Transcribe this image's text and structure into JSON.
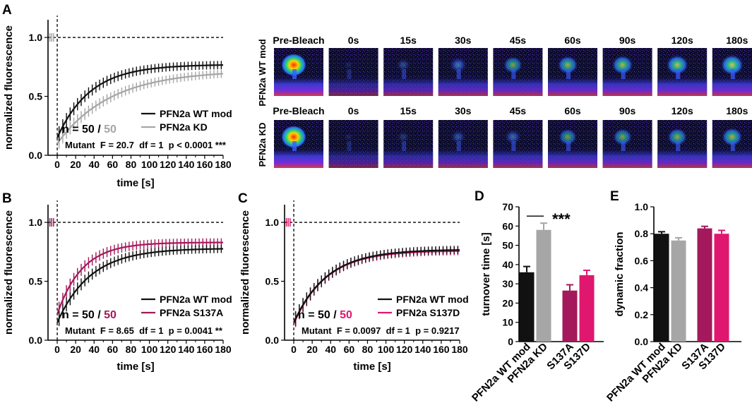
{
  "panel_labels": [
    "A",
    "B",
    "C",
    "D",
    "E"
  ],
  "colors": {
    "wt": "#111111",
    "kd": "#a6a6a6",
    "s137a": "#a3195b",
    "s137d": "#e0176f"
  },
  "chart_data": [
    {
      "id": "A",
      "type": "line",
      "ylabel": "normalized fluorescence",
      "xlabel": "time [s]",
      "xlim": [
        -10,
        180
      ],
      "ylim": [
        0,
        1.15
      ],
      "xticks": [
        "0",
        "20",
        "40",
        "60",
        "80",
        "100",
        "120",
        "140",
        "160",
        "180"
      ],
      "yticks": [
        "0.0",
        "0.5",
        "1.0"
      ],
      "reference_line": 1.0,
      "series": [
        {
          "name": "PFN2a WT mod",
          "color": "#111111",
          "plateau": 0.77,
          "start": 0.15,
          "tau": 36
        },
        {
          "name": "PFN2a KD",
          "color": "#a6a6a6",
          "plateau": 0.72,
          "start": 0.1,
          "tau": 58
        }
      ],
      "n_text": {
        "prefix": "n = ",
        "a": "50",
        "sep": " / ",
        "b": "50"
      },
      "stat_text": "Mutant  F = 20.7  df = 1  p < 0.0001 ***"
    },
    {
      "id": "B",
      "type": "line",
      "ylabel": "normalized fluorescence",
      "xlabel": "time [s]",
      "xlim": [
        -10,
        180
      ],
      "ylim": [
        0,
        1.15
      ],
      "xticks": [
        "0",
        "20",
        "40",
        "60",
        "80",
        "100",
        "120",
        "140",
        "160",
        "180"
      ],
      "yticks": [
        "0.0",
        "0.5",
        "1.0"
      ],
      "reference_line": 1.0,
      "series": [
        {
          "name": "PFN2a WT mod",
          "color": "#111111",
          "plateau": 0.78,
          "start": 0.15,
          "tau": 36
        },
        {
          "name": "PFN2a S137A",
          "color": "#a3195b",
          "plateau": 0.83,
          "start": 0.22,
          "tau": 27
        }
      ],
      "n_text": {
        "prefix": "n = ",
        "a": "50",
        "sep": " / ",
        "b": "50"
      },
      "stat_text": "Mutant  F = 8.65  df = 1  p = 0.0041 **"
    },
    {
      "id": "C",
      "type": "line",
      "ylabel": "normalized fluorescence",
      "xlabel": "time [s]",
      "xlim": [
        -10,
        180
      ],
      "ylim": [
        0,
        1.15
      ],
      "xticks": [
        "0",
        "20",
        "40",
        "60",
        "80",
        "100",
        "120",
        "140",
        "160",
        "180"
      ],
      "yticks": [
        "0.0",
        "0.5",
        "1.0"
      ],
      "reference_line": 1.0,
      "series": [
        {
          "name": "PFN2a WT mod",
          "color": "#111111",
          "plateau": 0.77,
          "start": 0.15,
          "tau": 36
        },
        {
          "name": "PFN2a S137D",
          "color": "#e0176f",
          "plateau": 0.76,
          "start": 0.14,
          "tau": 35
        }
      ],
      "n_text": {
        "prefix": "n = ",
        "a": "50",
        "sep": " / ",
        "b": "50"
      },
      "stat_text": "Mutant  F = 0.0097  df = 1  p = 0.9217"
    },
    {
      "id": "D",
      "type": "bar",
      "ylabel": "turnover time [s]",
      "ylim": [
        0,
        70
      ],
      "yticks": [
        "0",
        "10",
        "20",
        "30",
        "40",
        "50",
        "60",
        "70"
      ],
      "categories": [
        "PFN2a WT mod",
        "PFN2a KD",
        "S137A",
        "S137D"
      ],
      "values": [
        36,
        58,
        26.5,
        34.5
      ],
      "errors": [
        3,
        3.5,
        3,
        2.5
      ],
      "colors": [
        "#111111",
        "#a6a6a6",
        "#a3195b",
        "#e0176f"
      ],
      "significance": "***"
    },
    {
      "id": "E",
      "type": "bar",
      "ylabel": "dynamic fraction",
      "ylim": [
        0,
        1.0
      ],
      "yticks": [
        "0.0",
        "0.2",
        "0.4",
        "0.6",
        "0.8",
        "1.0"
      ],
      "categories": [
        "PFN2a WT mod",
        "PFN2a KD",
        "S137A",
        "S137D"
      ],
      "values": [
        0.8,
        0.75,
        0.84,
        0.8
      ],
      "errors": [
        0.015,
        0.02,
        0.015,
        0.025
      ],
      "colors": [
        "#111111",
        "#a6a6a6",
        "#a3195b",
        "#e0176f"
      ]
    }
  ],
  "image_panel": {
    "timepoints": [
      "Pre-Bleach",
      "0s",
      "15s",
      "30s",
      "45s",
      "60s",
      "90s",
      "120s",
      "180s"
    ],
    "rows": [
      {
        "label": "PFN2a WT mod",
        "recovery": [
          1.0,
          0.05,
          0.35,
          0.55,
          0.62,
          0.7,
          0.75,
          0.8,
          0.85
        ]
      },
      {
        "label": "PFN2a KD",
        "recovery": [
          1.0,
          0.03,
          0.25,
          0.4,
          0.5,
          0.58,
          0.62,
          0.66,
          0.72
        ]
      }
    ]
  }
}
